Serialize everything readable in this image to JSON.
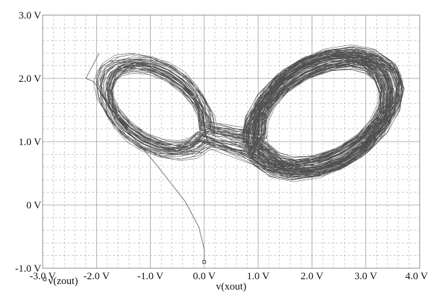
{
  "chart_data": {
    "type": "line",
    "title": "",
    "xlabel": "v(xout)",
    "ylabel": "",
    "legend": [
      {
        "label": "v(zout)",
        "marker": "square"
      }
    ],
    "xlim": [
      -3.0,
      4.0
    ],
    "ylim": [
      -1.0,
      3.0
    ],
    "x_ticks": [
      -3.0,
      -2.0,
      -1.0,
      0.0,
      1.0,
      2.0,
      3.0,
      4.0
    ],
    "y_ticks": [
      -1.0,
      0,
      1.0,
      2.0,
      3.0
    ],
    "x_tick_labels": [
      "-3.0 V",
      "-2.0 V",
      "-1.0 V",
      "0.0 V",
      "1.0 V",
      "2.0 V",
      "3.0 V",
      "4.0 V"
    ],
    "y_tick_labels": [
      "-1.0 V",
      "0 V",
      "1.0 V",
      "2.0 V",
      "3.0 V"
    ],
    "grid": true,
    "series": [
      {
        "name": "v(zout)",
        "color": "#333333",
        "description": "Chaotic double-scroll (butterfly) attractor trajectory starting at (0.0 V, -0.9 V)",
        "start_point": [
          0.0,
          -0.9
        ],
        "transient": [
          [
            0.0,
            -0.9
          ],
          [
            0.0,
            -0.7
          ],
          [
            -0.1,
            -0.35
          ],
          [
            -0.35,
            0.05
          ],
          [
            -0.9,
            0.65
          ],
          [
            -1.6,
            1.35
          ],
          [
            -2.05,
            1.95
          ],
          [
            -2.2,
            2.0
          ],
          [
            -1.95,
            2.4
          ]
        ],
        "lobes": [
          {
            "center": [
              -0.9,
              1.55
            ],
            "rx_range": [
              0.85,
              1.25
            ],
            "ry_range": [
              0.45,
              0.75
            ]
          },
          {
            "center": [
              2.2,
              1.45
            ],
            "rx_range": [
              1.1,
              1.6
            ],
            "ry_range": [
              0.6,
              0.95
            ]
          }
        ]
      }
    ]
  }
}
